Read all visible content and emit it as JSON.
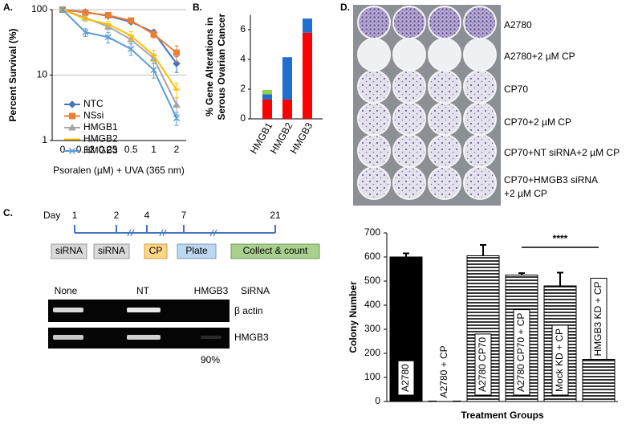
{
  "panels": [
    "A.",
    "B.",
    "C.",
    "D."
  ],
  "chart_data": [
    {
      "type": "line",
      "xlabel": "Psoralen (µM) + UVA (365 nm)",
      "ylabel": "Percent Survival (%)",
      "categories": [
        "0",
        "0.12",
        "0.25",
        "0.5",
        "1",
        "2"
      ],
      "log_y": true,
      "ylim": [
        1,
        100
      ],
      "yticks": [
        1,
        10,
        100
      ],
      "grid": true,
      "legend": "lower left",
      "series": [
        {
          "name": "NTC",
          "color": "#4472c4",
          "marker": "diamond",
          "values": [
            100,
            92,
            80,
            65,
            45,
            15
          ],
          "errors": [
            0,
            5,
            5,
            4,
            4,
            4
          ]
        },
        {
          "name": "NSsi",
          "color": "#ed7d31",
          "marker": "square",
          "values": [
            100,
            90,
            82,
            68,
            42,
            22
          ],
          "errors": [
            0,
            6,
            5,
            5,
            5,
            6
          ]
        },
        {
          "name": "HMGB1",
          "color": "#a5a5a5",
          "marker": "triangle",
          "values": [
            100,
            75,
            55,
            35,
            18,
            3.5
          ],
          "errors": [
            0,
            6,
            6,
            5,
            3,
            1
          ]
        },
        {
          "name": "HMGB2",
          "color": "#ffc000",
          "marker": "dash",
          "values": [
            100,
            72,
            60,
            40,
            20,
            6
          ],
          "errors": [
            0,
            6,
            6,
            6,
            4,
            1.5
          ]
        },
        {
          "name": "HMGB3",
          "color": "#5b9bd5",
          "marker": "cross",
          "values": [
            100,
            45,
            38,
            25,
            12,
            2.2
          ],
          "errors": [
            0,
            6,
            7,
            5,
            3,
            0.5
          ]
        }
      ]
    },
    {
      "type": "stacked_bar",
      "ylabel": [
        "% Gene Alterations in",
        "Serous Ovarian Cancer"
      ],
      "categories": [
        "HMGB1",
        "HMGB2",
        "HMGB3"
      ],
      "ylim": [
        0,
        7
      ],
      "yticks": [
        0,
        2,
        4,
        6
      ],
      "series": [
        {
          "color": "#ff0000",
          "values": [
            1.3,
            1.3,
            5.8
          ]
        },
        {
          "color": "#1f6fd0",
          "values": [
            0.35,
            2.85,
            0.95
          ]
        },
        {
          "color": "#92d050",
          "values": [
            0.3,
            0,
            0
          ]
        }
      ]
    },
    {
      "type": "bar",
      "xlabel": "Treatment Groups",
      "ylabel": "Colony Number",
      "categories": [
        "A2780",
        "A2780 + CP",
        "A2780 CP70",
        "A2780 CP70 + CP",
        "Mock KD + CP",
        "HMGB3 KD + CP"
      ],
      "values": [
        600,
        2,
        605,
        525,
        480,
        175
      ],
      "errors": [
        15,
        0,
        45,
        8,
        55,
        5
      ],
      "color": "#000000",
      "pattern": [
        "solid",
        "striped",
        "striped",
        "striped",
        "striped",
        "striped"
      ],
      "ylim": [
        0,
        700
      ],
      "yticks": [
        0,
        100,
        200,
        300,
        400,
        500,
        600,
        700
      ],
      "annotation": "****"
    }
  ],
  "timeline": {
    "day": "Day",
    "days": [
      "1",
      "2",
      "4",
      "7",
      "21"
    ],
    "steps": [
      "siRNA",
      "siRNA",
      "CP",
      "Plate",
      "Collect & count"
    ]
  },
  "gel": {
    "lanes": [
      "None",
      "NT",
      "HMGB3",
      "SiRNA"
    ],
    "bands": [
      "β actin",
      "HMGB3"
    ],
    "knockdown": "90%"
  },
  "plates": {
    "labels": [
      [
        "A2780"
      ],
      [
        "A2780+2 µM CP"
      ],
      [
        "CP70"
      ],
      [
        "CP70+2 µM CP"
      ],
      [
        "CP70+NT siRNA+2 µM CP"
      ],
      [
        "CP70+HMGB3 siRNA",
        "+2 µM CP"
      ]
    ]
  }
}
